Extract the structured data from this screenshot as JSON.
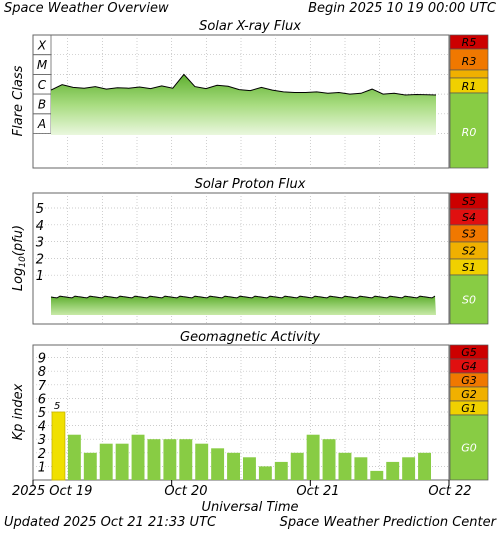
{
  "header": {
    "title": "Space Weather Overview",
    "begin": "Begin 2025 10 19 00:00 UTC"
  },
  "footer": {
    "updated": "Updated 2025 Oct 21 21:33 UTC",
    "center": "Space Weather Prediction Center"
  },
  "chart_data": [
    {
      "type": "area",
      "title": "Solar X-ray Flux",
      "ylabel": "Flare Class",
      "ylim": [
        "A",
        "X"
      ],
      "tick_labels": [
        "X",
        "M",
        "C",
        "B",
        "A"
      ],
      "scale_labels": [
        "R5",
        "R3",
        "R1",
        "R0"
      ],
      "colors": {
        "R5": "#cc0000",
        "R3": "#f07800",
        "R1": "#f0d000",
        "R0": "#88cc44"
      },
      "series": [
        {
          "x": [
            "Oct 19 00:00",
            "Oct 19 02:00",
            "Oct 19 04:00",
            "Oct 19 06:00",
            "Oct 19 08:00",
            "Oct 19 10:00",
            "Oct 19 12:00",
            "Oct 19 14:00",
            "Oct 19 16:00",
            "Oct 19 18:00",
            "Oct 19 20:00",
            "Oct 19 22:00",
            "Oct 20 00:00",
            "Oct 20 02:00",
            "Oct 20 04:00",
            "Oct 20 06:00",
            "Oct 20 08:00",
            "Oct 20 10:00",
            "Oct 20 12:00",
            "Oct 20 14:00",
            "Oct 20 16:00",
            "Oct 20 18:00",
            "Oct 20 20:00",
            "Oct 20 22:00",
            "Oct 21 00:00",
            "Oct 21 02:00",
            "Oct 21 04:00",
            "Oct 21 06:00",
            "Oct 21 08:00",
            "Oct 21 10:00",
            "Oct 21 12:00",
            "Oct 21 14:00",
            "Oct 21 16:00",
            "Oct 21 18:00",
            "Oct 21 20:00",
            "Oct 21 21:33"
          ],
          "class": [
            "C1.6",
            "C3.0",
            "C2.2",
            "C2.0",
            "C2.4",
            "C1.8",
            "C2.1",
            "C2.0",
            "C2.3",
            "C1.9",
            "C2.6",
            "C2.0",
            "M1.0",
            "C2.4",
            "C1.9",
            "C2.8",
            "C2.5",
            "C1.7",
            "C1.5",
            "C2.2",
            "C1.6",
            "C1.3",
            "C1.2",
            "C1.2",
            "C1.3",
            "C1.1",
            "C1.2",
            "C1.0",
            "C1.1",
            "C1.8",
            "C1.0",
            "C1.1",
            "B9.0",
            "B9.5",
            "B9.2",
            "B9.0"
          ]
        }
      ]
    },
    {
      "type": "area",
      "title": "Solar Proton Flux",
      "ylabel": "Log10(pfu)",
      "ylim": [
        -1,
        6
      ],
      "tick_labels": [
        "5",
        "4",
        "3",
        "2",
        "1"
      ],
      "scale_labels": [
        "S5",
        "S4",
        "S3",
        "S2",
        "S1",
        "S0"
      ],
      "colors": {
        "S5": "#cc0000",
        "S4": "#e01010",
        "S3": "#f07800",
        "S2": "#f0b000",
        "S1": "#f0d000",
        "S0": "#88cc44"
      },
      "series": [
        {
          "x": [
            "Oct 19 00:00",
            "Oct 19 12:00",
            "Oct 20 00:00",
            "Oct 20 12:00",
            "Oct 21 00:00",
            "Oct 21 12:00",
            "Oct 21 21:33"
          ],
          "values": [
            -0.3,
            -0.3,
            -0.3,
            -0.3,
            -0.3,
            -0.3,
            -0.3
          ]
        }
      ]
    },
    {
      "type": "bar",
      "title": "Geomagnetic Activity",
      "ylabel": "Kp index",
      "xlabel": "Universal Time",
      "ylim": [
        0,
        10
      ],
      "tick_labels": [
        "9",
        "8",
        "7",
        "6",
        "5",
        "4",
        "3",
        "2",
        "1"
      ],
      "x_ticks": [
        "2025 Oct 19",
        "Oct 20",
        "Oct 21",
        "Oct 22"
      ],
      "values": [
        5,
        3.33,
        2,
        2.67,
        2.67,
        3.33,
        3,
        3,
        3,
        2.67,
        2.33,
        2,
        1.67,
        1,
        1.33,
        2,
        3.33,
        3,
        2,
        1.67,
        0.67,
        1.33,
        1.67,
        2
      ],
      "data_labels": [
        "5"
      ],
      "scale_labels": [
        "G5",
        "G4",
        "G3",
        "G2",
        "G1",
        "G0"
      ],
      "colors": {
        "G5": "#cc0000",
        "G4": "#e01010",
        "G3": "#f07800",
        "G2": "#f0b000",
        "G1": "#f0d000",
        "G0": "#88cc44",
        "bar": "#88cc44",
        "bar_storm": "#f0e000"
      }
    }
  ],
  "labels": {
    "xray_title": "Solar X-ray Flux",
    "xray_ylabel": "Flare Class",
    "proton_title": "Solar Proton Flux",
    "proton_ylabel_main": "Log",
    "proton_ylabel_sub": "10",
    "proton_ylabel_tail": "(pfu)",
    "geo_title": "Geomagnetic Activity",
    "geo_ylabel": "Kp index",
    "xaxis_title": "Universal Time",
    "x_tick_0": "2025 Oct 19",
    "x_tick_1": "Oct 20",
    "x_tick_2": "Oct 21",
    "x_tick_3": "Oct 22"
  }
}
